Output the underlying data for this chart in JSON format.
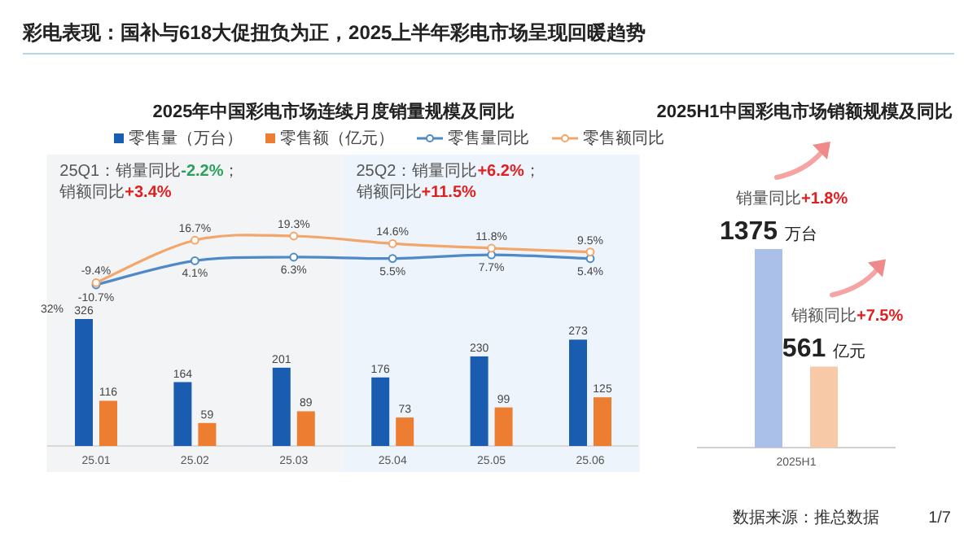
{
  "chart_data": [
    {
      "type": "other",
      "title": "彩电表现：国补与618大促扭负为正，2025上半年彩电市场呈现回暖趋势",
      "annotations": [
        "数据来源：推总数据",
        "1/7"
      ]
    },
    {
      "type": "bar",
      "categories": [
        "25.01",
        "25.02",
        "25.03",
        "25.04",
        "25.05",
        "25.06"
      ],
      "legend": "top",
      "series": [
        {
          "name": "零售量（万台）",
          "color": "#1a5cb0",
          "values": [
            326,
            164,
            201,
            176,
            230,
            273
          ],
          "value_labels": [
            "326",
            "164",
            "201",
            "176",
            "230",
            "273"
          ]
        },
        {
          "name": "零售额（亿元）",
          "color": "#ed7d31",
          "values": [
            116,
            59,
            89,
            73,
            99,
            125
          ],
          "value_labels": [
            "116",
            "59",
            "89",
            "73",
            "99",
            "125"
          ]
        }
      ],
      "bands": [
        {
          "axis": "x",
          "from": "25.01",
          "to": "25.03",
          "label": "25Q1：销量同比-2.2%；销额同比+3.4%",
          "color": "#f3f4f6"
        },
        {
          "axis": "x",
          "from": "25.04",
          "to": "25.06",
          "label": "25Q2：销量同比+6.2%；销额同比+11.5%",
          "color": "#eef4fb"
        }
      ]
    },
    {
      "type": "line",
      "title": "2025年中国彩电市场连续月度销量规模及同比",
      "categories": [
        "25.01",
        "25.02",
        "25.03",
        "25.04",
        "25.05",
        "25.06"
      ],
      "legend": "top",
      "marker": "circle",
      "line_style": "solid",
      "tick_labels": false,
      "series": [
        {
          "name": "零售量同比",
          "color": "#4f89c8",
          "values": [
            -10.7,
            4.1,
            6.3,
            5.5,
            7.7,
            5.4
          ],
          "value_labels": [
            "-10.7%",
            "4.1%",
            "6.3%",
            "5.5%",
            "7.7%",
            "5.4%"
          ]
        },
        {
          "name": "零售额同比",
          "color": "#f2a66a",
          "values": [
            -9.4,
            16.7,
            19.3,
            14.6,
            11.8,
            9.5
          ],
          "value_labels": [
            "-9.4%",
            "16.7%",
            "19.3%",
            "14.6%",
            "11.8%",
            "9.5%"
          ]
        }
      ],
      "annotations": [
        "32%"
      ]
    },
    {
      "type": "bar",
      "title": "2025H1中国彩电市场销额规模及同比",
      "categories": [
        "2025H1"
      ],
      "series": [
        {
          "color": "#aac0e8",
          "values": [
            1375
          ],
          "value_labels": [
            "1375 万台"
          ]
        },
        {
          "color": "#f8c9a6",
          "values": [
            561
          ],
          "value_labels": [
            "561 亿元"
          ]
        }
      ],
      "annotations": [
        "销量同比+1.8%",
        "销额同比+7.5%"
      ]
    }
  ]
}
